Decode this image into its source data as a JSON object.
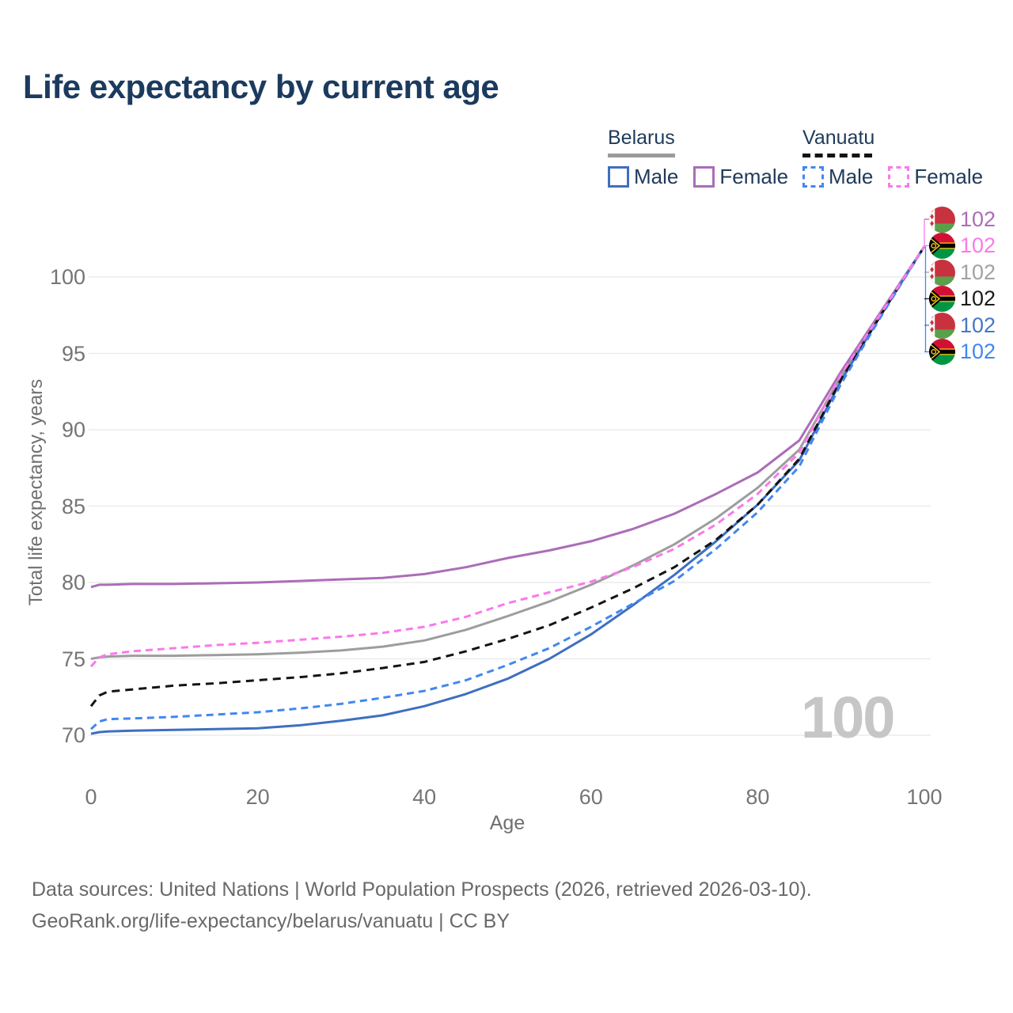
{
  "title": "Life expectancy by current age",
  "legend": {
    "groups": [
      {
        "name": "Belarus",
        "line_style": "solid",
        "line_color": "#9b9b9b",
        "items": [
          {
            "label": "Male",
            "color": "#3e6fc1",
            "box_style": "solid"
          },
          {
            "label": "Female",
            "color": "#ab6db8",
            "box_style": "solid"
          }
        ]
      },
      {
        "name": "Vanuatu",
        "line_style": "dashed",
        "line_color": "#141414",
        "items": [
          {
            "label": "Male",
            "color": "#4287f0",
            "box_style": "dashed"
          },
          {
            "label": "Female",
            "color": "#fa79ea",
            "box_style": "dashed"
          }
        ]
      }
    ]
  },
  "y_axis": {
    "label": "Total life expectancy, years",
    "ticks": [
      70,
      75,
      80,
      85,
      90,
      95,
      100
    ]
  },
  "x_axis": {
    "label": "Age",
    "ticks": [
      0,
      20,
      40,
      60,
      80,
      100
    ]
  },
  "watermark": "100",
  "end_labels": [
    {
      "value": "102",
      "flag": "belarus",
      "series": "Belarus Female",
      "color": "#ab6db8"
    },
    {
      "value": "102",
      "flag": "vanuatu",
      "series": "Vanuatu Female",
      "color": "#fa79ea"
    },
    {
      "value": "102",
      "flag": "belarus",
      "series": "Belarus",
      "color": "#a2a2a2"
    },
    {
      "value": "102",
      "flag": "vanuatu",
      "series": "Vanuatu",
      "color": "#1c1c1c"
    },
    {
      "value": "102",
      "flag": "belarus",
      "series": "Belarus Male",
      "color": "#4577c6"
    },
    {
      "value": "102",
      "flag": "vanuatu",
      "series": "Vanuatu Male",
      "color": "#4287f0"
    }
  ],
  "footer": {
    "line1": "Data sources: United Nations | World Population Prospects (2026, retrieved 2026-03-10).",
    "line2": "GeoRank.org/life-expectancy/belarus/vanuatu | CC BY"
  },
  "chart_data": {
    "type": "line",
    "title": "Life expectancy by current age",
    "xlabel": "Age",
    "ylabel": "Total life expectancy, years",
    "xlim": [
      0,
      100
    ],
    "ylim": [
      68,
      103
    ],
    "grid": "horizontal-only",
    "legend_position": "top-right",
    "x": [
      0,
      1,
      2,
      5,
      10,
      15,
      20,
      25,
      30,
      35,
      40,
      45,
      50,
      55,
      60,
      65,
      70,
      75,
      80,
      85,
      90,
      95,
      100
    ],
    "series": [
      {
        "name": "Belarus",
        "country": "Belarus",
        "sex": "Both",
        "color": "#9d9d9d",
        "style": "solid",
        "values": [
          75.0,
          75.1,
          75.15,
          75.2,
          75.2,
          75.25,
          75.3,
          75.4,
          75.55,
          75.8,
          76.2,
          76.9,
          77.8,
          78.75,
          79.85,
          81.1,
          82.5,
          84.2,
          86.2,
          88.7,
          93.5,
          97.8,
          102
        ]
      },
      {
        "name": "Belarus Female",
        "country": "Belarus",
        "sex": "Female",
        "color": "#ab6db8",
        "style": "solid",
        "values": [
          79.7,
          79.85,
          79.85,
          79.9,
          79.9,
          79.95,
          80.0,
          80.1,
          80.2,
          80.3,
          80.55,
          81.0,
          81.6,
          82.1,
          82.7,
          83.5,
          84.5,
          85.8,
          87.2,
          89.3,
          93.8,
          97.9,
          102
        ]
      },
      {
        "name": "Belarus Male",
        "country": "Belarus",
        "sex": "Male",
        "color": "#3e6fc1",
        "style": "solid",
        "values": [
          70.1,
          70.2,
          70.25,
          70.3,
          70.35,
          70.4,
          70.45,
          70.65,
          70.95,
          71.3,
          71.9,
          72.7,
          73.7,
          75.0,
          76.6,
          78.5,
          80.5,
          82.7,
          85.1,
          88.0,
          93.2,
          97.7,
          102
        ]
      },
      {
        "name": "Vanuatu",
        "country": "Vanuatu",
        "sex": "Both",
        "color": "#141414",
        "style": "dashed",
        "values": [
          71.9,
          72.6,
          72.85,
          73.0,
          73.25,
          73.4,
          73.6,
          73.8,
          74.05,
          74.4,
          74.8,
          75.5,
          76.3,
          77.2,
          78.35,
          79.6,
          81.0,
          82.8,
          85.1,
          88.1,
          93.3,
          97.7,
          102
        ]
      },
      {
        "name": "Vanuatu Male",
        "country": "Vanuatu",
        "sex": "Male",
        "color": "#4287f0",
        "style": "dashed",
        "values": [
          70.4,
          70.9,
          71.05,
          71.1,
          71.2,
          71.35,
          71.5,
          71.75,
          72.05,
          72.45,
          72.9,
          73.6,
          74.6,
          75.7,
          77.1,
          78.6,
          80.1,
          82.2,
          84.6,
          87.6,
          93.0,
          97.6,
          102
        ]
      },
      {
        "name": "Vanuatu Female",
        "country": "Vanuatu",
        "sex": "Female",
        "color": "#fa79ea",
        "style": "dashed",
        "values": [
          74.5,
          75.1,
          75.3,
          75.5,
          75.7,
          75.9,
          76.05,
          76.25,
          76.45,
          76.7,
          77.1,
          77.75,
          78.65,
          79.35,
          80.05,
          81.0,
          82.2,
          83.8,
          85.8,
          88.5,
          93.6,
          97.8,
          102
        ]
      }
    ],
    "end_value_at_age_100": 102
  }
}
